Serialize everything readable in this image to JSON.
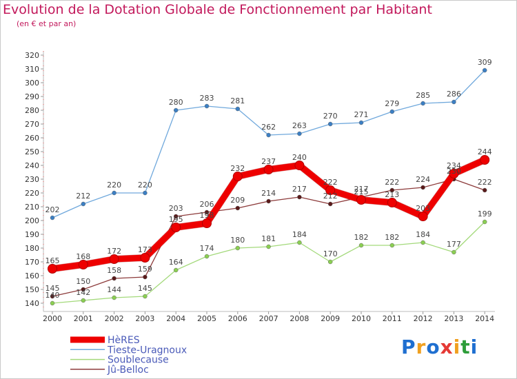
{
  "title": "Evolution de la Dotation Globale de Fonctionnement par Habitant",
  "subtitle": "(en € et par an)",
  "logo": {
    "text": "Proxiti",
    "letters": [
      {
        "ch": "P",
        "color": "#1f6fd0"
      },
      {
        "ch": "r",
        "color": "#f0a020"
      },
      {
        "ch": "o",
        "color": "#1f6fd0"
      },
      {
        "ch": "x",
        "color": "#e53935"
      },
      {
        "ch": "i",
        "color": "#f0a020"
      },
      {
        "ch": "t",
        "color": "#2e9d3a"
      },
      {
        "ch": "i",
        "color": "#1f6fd0"
      }
    ]
  },
  "chart_data": {
    "type": "line",
    "title": "Evolution de la Dotation Globale de Fonctionnement par Habitant",
    "subtitle": "(en € et par an)",
    "x": [
      2000,
      2001,
      2002,
      2003,
      2004,
      2005,
      2006,
      2007,
      2008,
      2009,
      2010,
      2011,
      2012,
      2013,
      2014
    ],
    "ylim": [
      140,
      320
    ],
    "yticks": [
      140,
      150,
      160,
      170,
      180,
      190,
      200,
      210,
      220,
      230,
      240,
      250,
      260,
      270,
      280,
      290,
      300,
      310,
      320
    ],
    "grid": false,
    "legend_position": "bottom",
    "series": [
      {
        "name": "Tieste-Uragnoux",
        "color": "#6fa8dc",
        "marker": "#3b7fc4",
        "values": [
          202,
          212,
          220,
          220,
          280,
          283,
          281,
          262,
          263,
          270,
          271,
          279,
          285,
          286,
          309
        ]
      },
      {
        "name": "Soublecause",
        "color": "#a3d97a",
        "marker": "#8bcf52",
        "values": [
          140,
          142,
          144,
          145,
          164,
          174,
          180,
          181,
          184,
          170,
          182,
          182,
          184,
          177,
          199
        ]
      },
      {
        "name": "Jû-Belloc",
        "color": "#8c3a3a",
        "marker": "#5a1a1a",
        "values": [
          145,
          150,
          158,
          159,
          203,
          206,
          209,
          214,
          217,
          212,
          217,
          222,
          224,
          230,
          222
        ]
      },
      {
        "name": "HèRES",
        "color": "#ee0000",
        "marker": "#ee0000",
        "values": [
          165,
          168,
          172,
          173,
          195,
          198,
          232,
          237,
          240,
          222,
          215,
          213,
          203,
          234,
          244
        ],
        "emphasis": true
      }
    ],
    "legend": [
      "HèRES",
      "Tieste-Uragnoux",
      "Soublecause",
      "Jû-Belloc"
    ]
  }
}
